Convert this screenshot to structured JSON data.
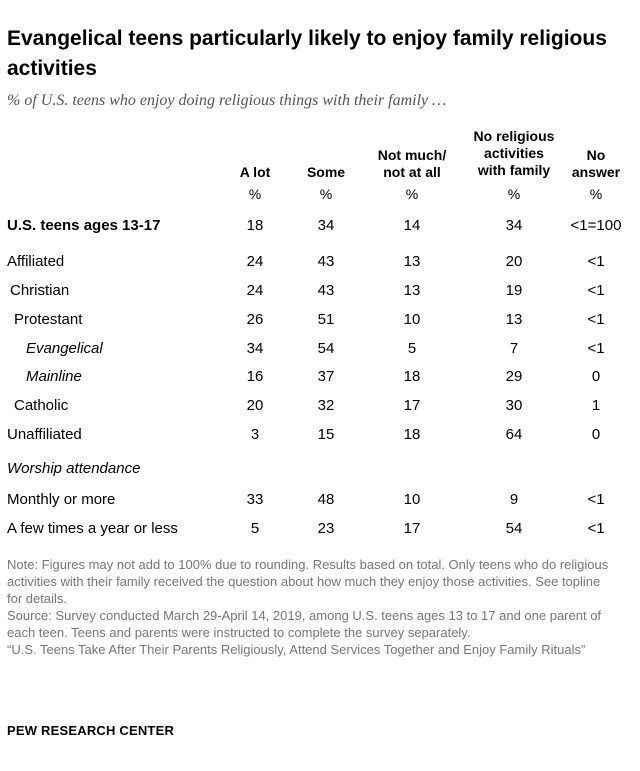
{
  "title": "Evangelical teens particularly likely to enjoy family religious activities",
  "subtitle": "% of U.S. teens who enjoy doing religious things with their family …",
  "columns": [
    {
      "line1": "",
      "line2": "",
      "line3": "A lot",
      "unit": "%"
    },
    {
      "line1": "",
      "line2": "",
      "line3": "Some",
      "unit": "%"
    },
    {
      "line1": "",
      "line2": "Not much/",
      "line3": "not at all",
      "unit": "%"
    },
    {
      "line1": "No religious",
      "line2": "activities",
      "line3": "with family",
      "unit": "%"
    },
    {
      "line1": "",
      "line2": "No",
      "line3": "answer",
      "unit": "%"
    }
  ],
  "rows": [
    {
      "label": "U.S. teens ages 13-17",
      "values": [
        "18",
        "34",
        "14",
        "34",
        "<1=100"
      ]
    },
    {
      "label": "Affiliated",
      "values": [
        "24",
        "43",
        "13",
        "20",
        "<1"
      ]
    },
    {
      "label": "Christian",
      "values": [
        "24",
        "43",
        "13",
        "19",
        "<1"
      ]
    },
    {
      "label": "Protestant",
      "values": [
        "26",
        "51",
        "10",
        "13",
        "<1"
      ]
    },
    {
      "label": "Evangelical",
      "values": [
        "34",
        "54",
        "5",
        "7",
        "<1"
      ]
    },
    {
      "label": "Mainline",
      "values": [
        "16",
        "37",
        "18",
        "29",
        "0"
      ]
    },
    {
      "label": "Catholic",
      "values": [
        "20",
        "32",
        "17",
        "30",
        "1"
      ]
    },
    {
      "label": "Unaffiliated",
      "values": [
        "3",
        "15",
        "18",
        "64",
        "0"
      ]
    },
    {
      "label": "Monthly or more",
      "values": [
        "33",
        "48",
        "10",
        "9",
        "<1"
      ]
    },
    {
      "label": "A few times a year or less",
      "values": [
        "5",
        "23",
        "17",
        "54",
        "<1"
      ]
    }
  ],
  "section_label": "Worship attendance",
  "note": "Note: Figures may not add to 100% due to rounding. Results based on total. Only teens who do religious activities with their family received the question about how much they enjoy those activities. See topline for details.",
  "source": "Source: Survey conducted March 29-April 14, 2019, among U.S. teens ages 13 to 17 and one parent of each teen. Teens and parents were instructed to complete the survey separately.",
  "report": "“U.S. Teens Take After Their Parents Religiously, Attend Services Together and Enjoy Family Rituals”",
  "brand": "PEW RESEARCH CENTER"
}
